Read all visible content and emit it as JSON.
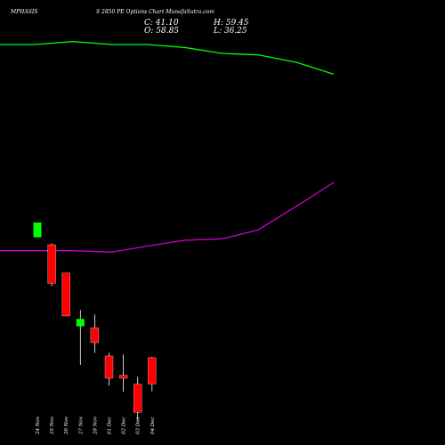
{
  "header": {
    "symbol": "MPHASIS",
    "subtitle": "S 2850 PE Options Chart MunafaSutra.com",
    "close_label": "C: 41.10",
    "high_label": "H: 59.45",
    "open_label": "O: 58.85",
    "low_label": "L: 36.25"
  },
  "chart_data": {
    "type": "candlestick",
    "title": "",
    "xlabel": "",
    "ylabel": "",
    "background": "#000000",
    "categories": [
      "24 Nov",
      "25 Nov",
      "26 Nov",
      "27 Nov",
      "28 Nov",
      "01 Dec",
      "02 Dec",
      "03 Dec",
      "04 Dec"
    ],
    "candles": [
      {
        "date": "24 Nov",
        "open": 150,
        "high": 150,
        "low": 140,
        "close": 140,
        "color": "#00ff00"
      },
      {
        "date": "25 Nov",
        "open": 135,
        "high": 136,
        "low": 107,
        "close": 109,
        "color": "#ff0000"
      },
      {
        "date": "26 Nov",
        "open": 116,
        "high": 116,
        "low": 87,
        "close": 87,
        "color": "#ff0000"
      },
      {
        "date": "27 Nov",
        "open": 80,
        "high": 91,
        "low": 54,
        "close": 85,
        "color": "#00ff00"
      },
      {
        "date": "28 Nov",
        "open": 79,
        "high": 88,
        "low": 62,
        "close": 69,
        "color": "#ff0000"
      },
      {
        "date": "01 Dec",
        "open": 60,
        "high": 62,
        "low": 40,
        "close": 45,
        "color": "#ff0000"
      },
      {
        "date": "02 Dec",
        "open": 47,
        "high": 61,
        "low": 36,
        "close": 45,
        "color": "#ff0000"
      },
      {
        "date": "03 Dec",
        "open": 41,
        "high": 46,
        "low": 17,
        "close": 22,
        "color": "#ff0000"
      },
      {
        "date": "04 Dec",
        "open": 58.85,
        "high": 59.45,
        "low": 36.25,
        "close": 41.1,
        "color": "#ff0000"
      }
    ],
    "lines": [
      {
        "color": "#00ff00",
        "points": [
          [
            0,
            270
          ],
          [
            40,
            270
          ],
          [
            82,
            272
          ],
          [
            125,
            270
          ],
          [
            165,
            270
          ],
          [
            207,
            268
          ],
          [
            250,
            264
          ],
          [
            290,
            263
          ],
          [
            333,
            258
          ],
          [
            375,
            250
          ]
        ]
      },
      {
        "color": "#cc00cc",
        "points": [
          [
            0,
            131
          ],
          [
            40,
            131
          ],
          [
            82,
            131
          ],
          [
            125,
            130
          ],
          [
            165,
            134
          ],
          [
            207,
            138
          ],
          [
            250,
            139
          ],
          [
            290,
            145
          ],
          [
            333,
            161
          ],
          [
            375,
            177
          ]
        ]
      }
    ]
  }
}
